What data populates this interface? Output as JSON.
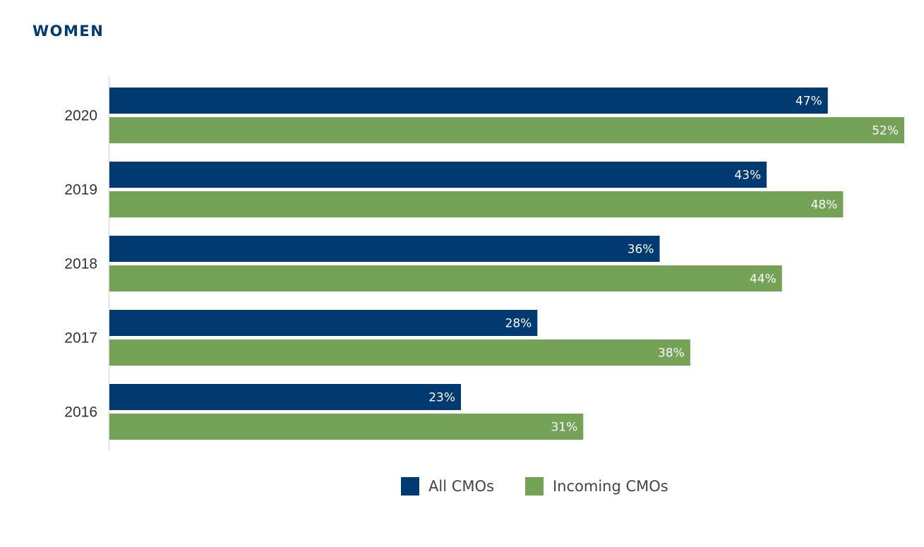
{
  "chart_data": {
    "type": "bar",
    "orientation": "horizontal",
    "title": "WOMEN",
    "categories": [
      "2020",
      "2019",
      "2018",
      "2017",
      "2016"
    ],
    "series": [
      {
        "name": "All CMOs",
        "color": "#003a70",
        "values": [
          47,
          43,
          36,
          28,
          23
        ]
      },
      {
        "name": "Incoming CMOs",
        "color": "#74a256",
        "values": [
          52,
          48,
          44,
          38,
          31
        ]
      }
    ],
    "value_suffix": "%",
    "xlim": [
      0,
      52
    ],
    "grid": false,
    "legend_position": "bottom-center"
  },
  "colors": {
    "title": "#003a70",
    "axis": "#d9d9d9"
  }
}
